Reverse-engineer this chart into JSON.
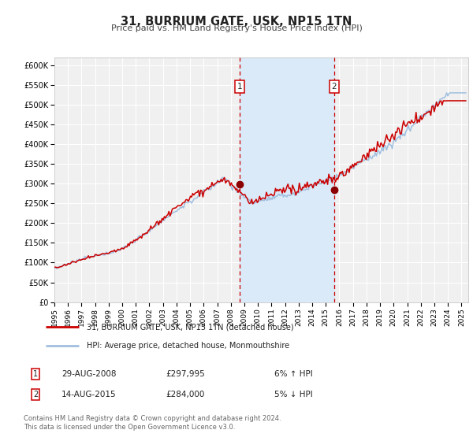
{
  "title": "31, BURRIUM GATE, USK, NP15 1TN",
  "subtitle": "Price paid vs. HM Land Registry's House Price Index (HPI)",
  "ylim": [
    0,
    620000
  ],
  "yticks": [
    0,
    50000,
    100000,
    150000,
    200000,
    250000,
    300000,
    350000,
    400000,
    450000,
    500000,
    550000,
    600000
  ],
  "ytick_labels": [
    "£0",
    "£50K",
    "£100K",
    "£150K",
    "£200K",
    "£250K",
    "£300K",
    "£350K",
    "£400K",
    "£450K",
    "£500K",
    "£550K",
    "£600K"
  ],
  "xlim_start": 1995.0,
  "xlim_end": 2025.5,
  "hpi_color": "#a0bfdf",
  "price_color": "#cc0000",
  "dot_color": "#8b0000",
  "vline_color": "#cc0000",
  "shade_color": "#daeaf8",
  "transaction1_x": 2008.66,
  "transaction1_y": 297995,
  "transaction2_x": 2015.62,
  "transaction2_y": 284000,
  "transaction1_date": "29-AUG-2008",
  "transaction1_price": "£297,995",
  "transaction1_hpi": "6% ↑ HPI",
  "transaction2_date": "14-AUG-2015",
  "transaction2_price": "£284,000",
  "transaction2_hpi": "5% ↓ HPI",
  "legend1_label": "31, BURRIUM GATE, USK, NP15 1TN (detached house)",
  "legend2_label": "HPI: Average price, detached house, Monmouthshire",
  "footer1": "Contains HM Land Registry data © Crown copyright and database right 2024.",
  "footer2": "This data is licensed under the Open Government Licence v3.0.",
  "bg_color": "#ffffff",
  "plot_bg_color": "#f0f0f0",
  "grid_color": "#ffffff"
}
